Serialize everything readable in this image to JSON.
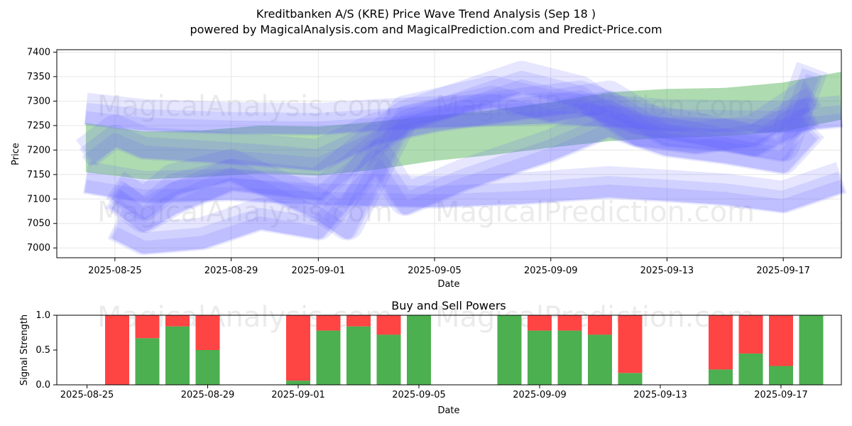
{
  "header": {
    "title": "Kreditbanken A/S (KRE) Price Wave Trend Analysis (Sep 18 )",
    "subtitle": "powered by MagicalAnalysis.com and MagicalPrediction.com and Predict-Price.com"
  },
  "watermarks": [
    "MagicalAnalysis.com",
    "MagicalPrediction.com",
    "MagicalAnalysis.com",
    "MagicalPrediction.com",
    "MagicalAnalysis.com",
    "MagicalPrediction.com"
  ],
  "colors": {
    "bands": "#6666ff",
    "green": "#4caf50",
    "red": "#ff4444",
    "axis": "#000000"
  },
  "chart_data": [
    {
      "type": "area",
      "title": "",
      "xlabel": "Date",
      "ylabel": "Price",
      "x_ticks": [
        "2025-08-25",
        "2025-08-29",
        "2025-09-01",
        "2025-09-05",
        "2025-09-09",
        "2025-09-13",
        "2025-09-17"
      ],
      "y_ticks": [
        7000,
        7050,
        7100,
        7150,
        7200,
        7250,
        7300,
        7350,
        7400
      ],
      "xlim": [
        "2025-08-23",
        "2025-09-19"
      ],
      "ylim": [
        6980,
        7405
      ],
      "green_band": {
        "x": [
          "2025-08-24",
          "2025-08-26",
          "2025-08-28",
          "2025-08-30",
          "2025-09-01",
          "2025-09-03",
          "2025-09-05",
          "2025-09-07",
          "2025-09-09",
          "2025-09-11",
          "2025-09-13",
          "2025-09-15",
          "2025-09-17",
          "2025-09-19"
        ],
        "upper": [
          7255,
          7238,
          7240,
          7250,
          7248,
          7258,
          7270,
          7282,
          7298,
          7318,
          7325,
          7327,
          7338,
          7360
        ],
        "lower": [
          7155,
          7140,
          7145,
          7152,
          7148,
          7160,
          7178,
          7190,
          7205,
          7218,
          7225,
          7228,
          7238,
          7262
        ]
      },
      "blue_bands": [
        {
          "x": [
            "2025-08-24",
            "2025-08-26",
            "2025-08-29",
            "2025-09-01",
            "2025-09-03",
            "2025-09-05",
            "2025-09-09",
            "2025-09-11",
            "2025-09-13",
            "2025-09-15",
            "2025-09-17",
            "2025-09-19"
          ],
          "center": [
            7275,
            7262,
            7256,
            7254,
            7262,
            7268,
            7276,
            7270,
            7262,
            7260,
            7258,
            7270
          ]
        },
        {
          "x": [
            "2025-08-24",
            "2025-08-26",
            "2025-08-29",
            "2025-09-01",
            "2025-09-03",
            "2025-09-05",
            "2025-09-08",
            "2025-09-11",
            "2025-09-13",
            "2025-09-15",
            "2025-09-17",
            "2025-09-19"
          ],
          "center": [
            7135,
            7115,
            7120,
            7110,
            7108,
            7105,
            7112,
            7125,
            7118,
            7110,
            7095,
            7135
          ]
        },
        {
          "x": [
            "2025-08-24",
            "2025-08-25",
            "2025-08-26",
            "2025-08-28",
            "2025-08-30",
            "2025-09-01",
            "2025-09-03",
            "2025-09-05",
            "2025-09-08",
            "2025-09-10",
            "2025-09-12",
            "2025-09-14",
            "2025-09-16",
            "2025-09-18"
          ],
          "center": [
            7185,
            7230,
            7205,
            7198,
            7190,
            7180,
            7235,
            7260,
            7285,
            7300,
            7255,
            7235,
            7210,
            7270
          ]
        },
        {
          "x": [
            "2025-08-25",
            "2025-08-26",
            "2025-08-27",
            "2025-08-29",
            "2025-09-01",
            "2025-09-03",
            "2025-09-04",
            "2025-09-06",
            "2025-09-08",
            "2025-09-10",
            "2025-09-12",
            "2025-09-14",
            "2025-09-16",
            "2025-09-18"
          ],
          "center": [
            7100,
            7055,
            7090,
            7140,
            7120,
            7215,
            7260,
            7300,
            7340,
            7310,
            7230,
            7215,
            7230,
            7310
          ]
        },
        {
          "x": [
            "2025-08-25",
            "2025-08-26",
            "2025-08-28",
            "2025-08-30",
            "2025-09-01",
            "2025-09-03",
            "2025-09-04",
            "2025-09-06",
            "2025-09-09",
            "2025-09-11",
            "2025-09-13",
            "2025-09-15",
            "2025-09-17",
            "2025-09-18"
          ],
          "center": [
            7040,
            7010,
            7020,
            7060,
            7040,
            7180,
            7090,
            7140,
            7200,
            7250,
            7210,
            7195,
            7175,
            7240
          ]
        },
        {
          "x": [
            "2025-08-25",
            "2025-08-26",
            "2025-08-27",
            "2025-08-29",
            "2025-09-01",
            "2025-09-02",
            "2025-09-04",
            "2025-09-07",
            "2025-09-09",
            "2025-09-11",
            "2025-09-13",
            "2025-09-15",
            "2025-09-17",
            "2025-09-18"
          ],
          "center": [
            7120,
            7080,
            7130,
            7160,
            7080,
            7040,
            7270,
            7310,
            7280,
            7300,
            7230,
            7220,
            7200,
            7360
          ]
        }
      ]
    },
    {
      "type": "bar",
      "title": "Buy and Sell Powers",
      "xlabel": "Date",
      "ylabel": "Signal Strength",
      "x_ticks": [
        "2025-08-25",
        "2025-08-29",
        "2025-09-01",
        "2025-09-05",
        "2025-09-09",
        "2025-09-13",
        "2025-09-17"
      ],
      "y_ticks": [
        "0.0",
        "0.5",
        "1.0"
      ],
      "ylim": [
        0,
        1
      ],
      "categories": [
        "2025-08-26",
        "2025-08-27",
        "2025-08-28",
        "2025-08-29",
        "2025-09-01",
        "2025-09-02",
        "2025-09-03",
        "2025-09-04",
        "2025-09-05",
        "2025-09-08",
        "2025-09-09",
        "2025-09-10",
        "2025-09-11",
        "2025-09-12",
        "2025-09-15",
        "2025-09-16",
        "2025-09-17",
        "2025-09-18"
      ],
      "series": [
        {
          "name": "Buy",
          "values": [
            0.0,
            0.67,
            0.84,
            0.5,
            0.06,
            0.78,
            0.84,
            0.72,
            1.0,
            1.0,
            0.78,
            0.78,
            0.72,
            0.17,
            0.22,
            0.45,
            0.27,
            1.0
          ]
        },
        {
          "name": "Sell",
          "values": [
            1.0,
            0.33,
            0.16,
            0.5,
            0.94,
            0.22,
            0.16,
            0.28,
            0.0,
            0.0,
            0.22,
            0.22,
            0.28,
            0.83,
            0.78,
            0.55,
            0.73,
            0.0
          ]
        }
      ]
    }
  ]
}
